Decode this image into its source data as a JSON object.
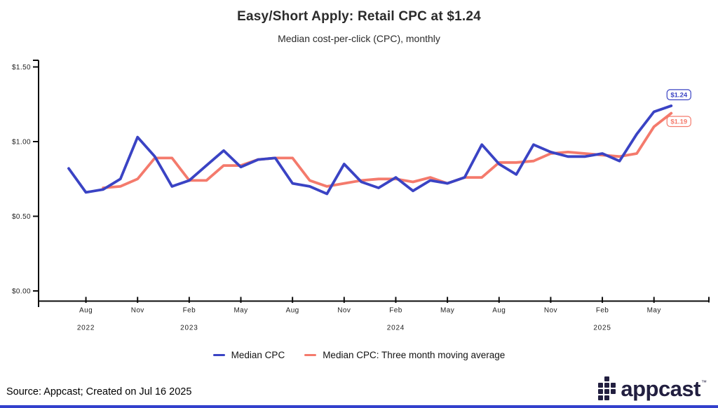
{
  "title": "Easy/Short Apply: Retail CPC at $1.24",
  "subtitle": "Median cost-per-click (CPC), monthly",
  "colors": {
    "median_cpc": "#3a43c4",
    "moving_avg": "#f47a6c",
    "axis": "#0c0c0c",
    "logo_navy": "#221f40",
    "bottom_bar": "#3340cc"
  },
  "chart_data": {
    "type": "line",
    "title": "Easy/Short Apply: Retail CPC at $1.24",
    "subtitle": "Median cost-per-click (CPC), monthly",
    "xlabel": "",
    "ylabel": "",
    "ylim": [
      0,
      1.5
    ],
    "grid": false,
    "legend_position": "bottom",
    "x": [
      "Jul 2022",
      "Aug 2022",
      "Sep 2022",
      "Oct 2022",
      "Nov 2022",
      "Dec 2022",
      "Jan 2023",
      "Feb 2023",
      "Mar 2023",
      "Apr 2023",
      "May 2023",
      "Jun 2023",
      "Jul 2023",
      "Aug 2023",
      "Sep 2023",
      "Oct 2023",
      "Nov 2023",
      "Dec 2023",
      "Jan 2024",
      "Feb 2024",
      "Mar 2024",
      "Apr 2024",
      "May 2024",
      "Jun 2024",
      "Jul 2024",
      "Aug 2024",
      "Sep 2024",
      "Oct 2024",
      "Nov 2024",
      "Dec 2024",
      "Jan 2025",
      "Feb 2025",
      "Mar 2025",
      "Apr 2025",
      "May 2025",
      "Jun 2025"
    ],
    "series": [
      {
        "name": "Median CPC",
        "color": "#3a43c4",
        "start_index": 0,
        "values": [
          0.82,
          0.66,
          0.68,
          0.75,
          1.03,
          0.9,
          0.7,
          0.74,
          0.84,
          0.94,
          0.83,
          0.88,
          0.89,
          0.72,
          0.7,
          0.65,
          0.85,
          0.73,
          0.69,
          0.76,
          0.67,
          0.74,
          0.72,
          0.76,
          0.98,
          0.85,
          0.78,
          0.98,
          0.93,
          0.9,
          0.9,
          0.92,
          0.87,
          1.05,
          1.2,
          1.24
        ]
      },
      {
        "name": "Median CPC: Three month moving average",
        "color": "#f47a6c",
        "start_index": 2,
        "values": [
          0.69,
          0.7,
          0.75,
          0.89,
          0.89,
          0.74,
          0.74,
          0.84,
          0.84,
          0.88,
          0.89,
          0.89,
          0.74,
          0.7,
          0.72,
          0.74,
          0.75,
          0.75,
          0.73,
          0.76,
          0.72,
          0.76,
          0.76,
          0.86,
          0.86,
          0.87,
          0.92,
          0.93,
          0.92,
          0.91,
          0.9,
          0.92,
          1.1,
          1.19
        ]
      }
    ],
    "y_ticks": [
      {
        "value": 0.0,
        "label": "$0.00"
      },
      {
        "value": 0.5,
        "label": "$0.50"
      },
      {
        "value": 1.0,
        "label": "$1.00"
      },
      {
        "value": 1.5,
        "label": "$1.50"
      }
    ],
    "x_ticks": [
      {
        "index": 1,
        "label": "Aug"
      },
      {
        "index": 4,
        "label": "Nov"
      },
      {
        "index": 7,
        "label": "Feb"
      },
      {
        "index": 10,
        "label": "May"
      },
      {
        "index": 13,
        "label": "Aug"
      },
      {
        "index": 16,
        "label": "Nov"
      },
      {
        "index": 19,
        "label": "Feb"
      },
      {
        "index": 22,
        "label": "May"
      },
      {
        "index": 25,
        "label": "Aug"
      },
      {
        "index": 28,
        "label": "Nov"
      },
      {
        "index": 31,
        "label": "Feb"
      },
      {
        "index": 34,
        "label": "May"
      }
    ],
    "year_labels": [
      {
        "index": 1,
        "label": "2022"
      },
      {
        "index": 7,
        "label": "2023"
      },
      {
        "index": 19,
        "label": "2024"
      },
      {
        "index": 31,
        "label": "2025"
      }
    ],
    "end_labels": [
      {
        "series": 0,
        "text": "$1.24"
      },
      {
        "series": 1,
        "text": "$1.19"
      }
    ]
  },
  "legend": {
    "items": [
      {
        "label": "Median CPC",
        "color": "#3a43c4"
      },
      {
        "label": "Median CPC: Three month moving average",
        "color": "#f47a6c"
      }
    ]
  },
  "footer": {
    "source_text": "Source: Appcast; Created on Jul 16 2025"
  },
  "logo": {
    "text": "appcast",
    "trademark": "™"
  }
}
